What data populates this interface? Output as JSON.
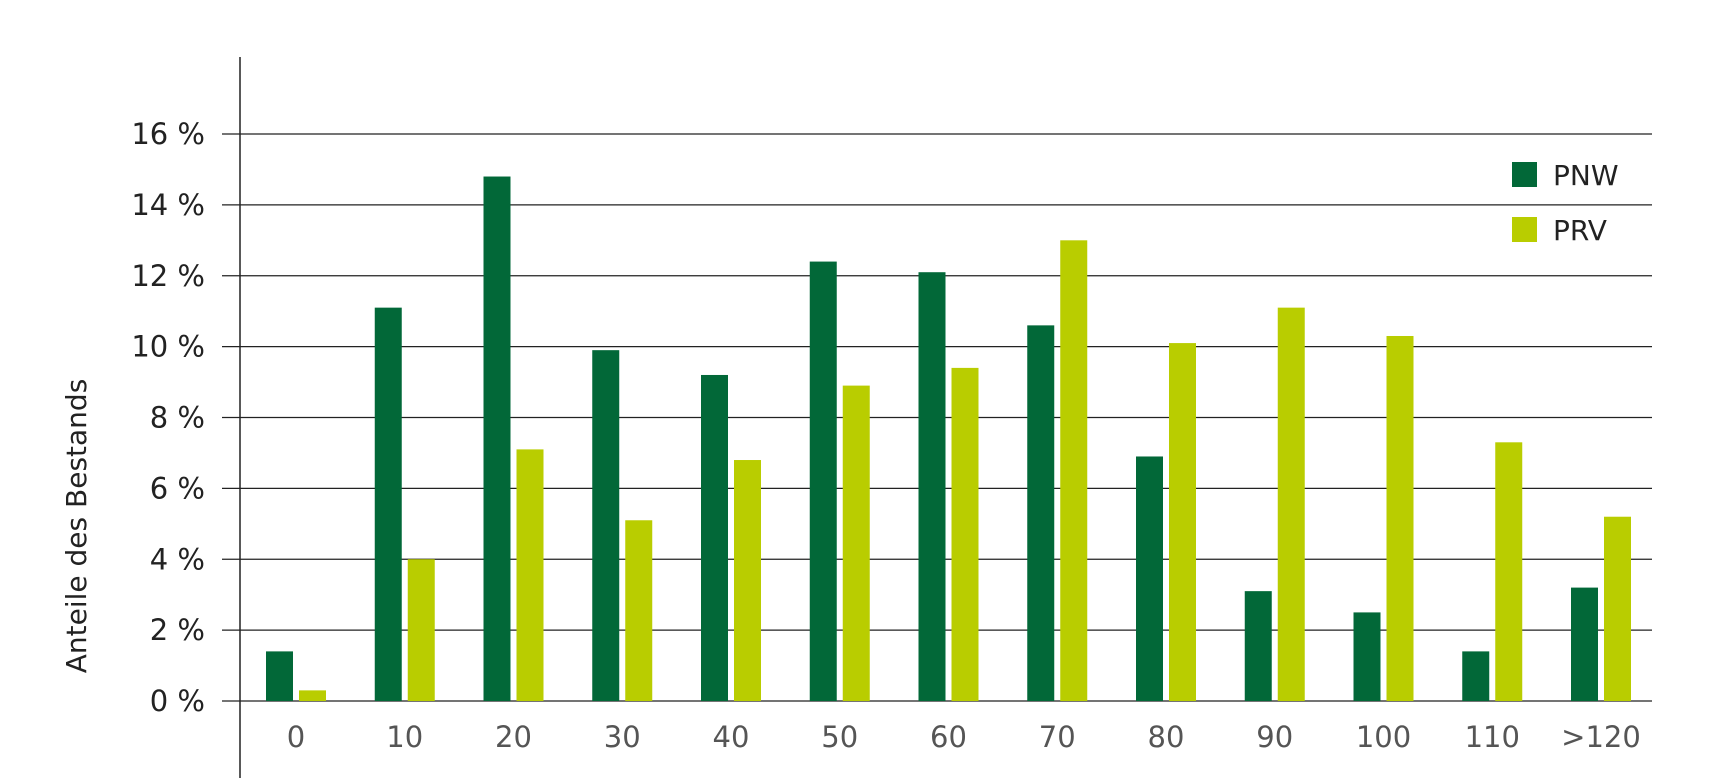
{
  "chart_data": {
    "type": "bar",
    "categories": [
      "0",
      "10",
      "20",
      "30",
      "40",
      "50",
      "60",
      "70",
      "80",
      "90",
      "100",
      "110",
      ">120"
    ],
    "series": [
      {
        "name": "PNW",
        "color": "#026838",
        "values": [
          1.4,
          11.1,
          14.8,
          9.9,
          9.2,
          12.4,
          12.1,
          10.6,
          6.9,
          3.1,
          2.5,
          1.4,
          3.2
        ]
      },
      {
        "name": "PRV",
        "color": "#b9cd00",
        "values": [
          0.3,
          4.0,
          7.1,
          5.1,
          6.8,
          8.9,
          9.4,
          13.0,
          10.1,
          11.1,
          10.3,
          7.3,
          5.2
        ]
      }
    ],
    "ylabel": "Anteile des Bestands",
    "xlabel": "",
    "ylim": [
      0,
      16
    ],
    "y_ticks": [
      0,
      2,
      4,
      6,
      8,
      10,
      12,
      14,
      16
    ],
    "y_tick_labels": [
      "0 %",
      "2 %",
      "4 %",
      "6 %",
      "8 %",
      "10 %",
      "12 %",
      "14 %",
      "16 %"
    ],
    "grid": true,
    "legend_position": "top-right"
  }
}
